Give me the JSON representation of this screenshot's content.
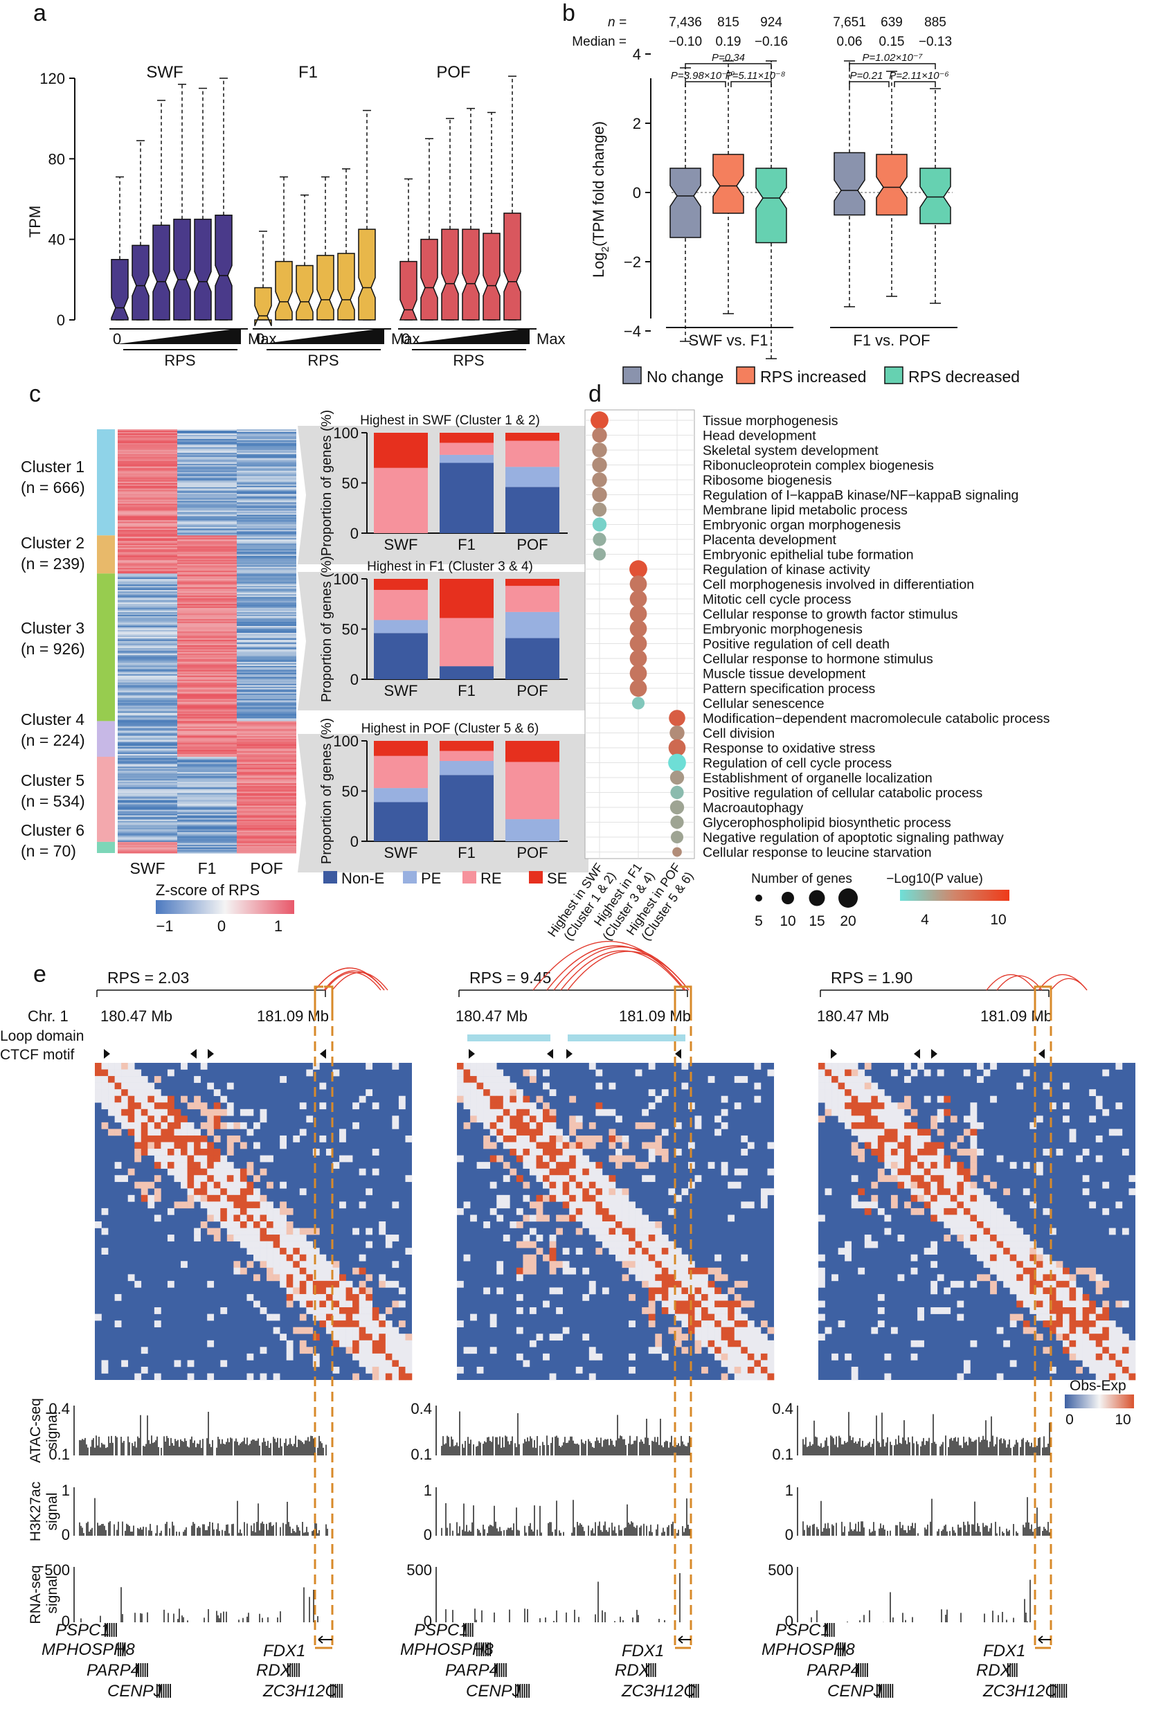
{
  "panel_a": {
    "letter": "a",
    "y_label": "TPM",
    "y_ticks": [
      "0",
      "40",
      "80",
      "120"
    ],
    "x_label": "RPS",
    "x_left": "0",
    "x_right": "Max",
    "colors": {
      "SWF": "#4a3a8a",
      "F1": "#e8b74a",
      "POF": "#d9575e"
    },
    "groups": [
      {
        "name": "SWF",
        "boxes": [
          [
            0,
            0,
            6,
            30,
            71
          ],
          [
            0,
            0,
            17,
            37,
            89
          ],
          [
            0,
            0,
            19,
            47,
            109
          ],
          [
            0,
            0,
            20,
            50,
            117
          ],
          [
            0,
            0,
            19,
            50,
            115
          ],
          [
            0,
            0,
            22,
            52,
            120
          ]
        ]
      },
      {
        "name": "F1",
        "boxes": [
          [
            0,
            0,
            2,
            16,
            44
          ],
          [
            0,
            0,
            9,
            29,
            71
          ],
          [
            0,
            0,
            9,
            27,
            62
          ],
          [
            0,
            0,
            10,
            32,
            71
          ],
          [
            0,
            0,
            10,
            33,
            75
          ],
          [
            0,
            0,
            16,
            45,
            104
          ]
        ]
      },
      {
        "name": "POF",
        "boxes": [
          [
            0,
            0,
            5,
            29,
            70
          ],
          [
            0,
            0,
            16,
            40,
            90
          ],
          [
            0,
            0,
            18,
            45,
            100
          ],
          [
            0,
            0,
            18,
            45,
            105
          ],
          [
            0,
            0,
            17,
            43,
            103
          ],
          [
            0,
            0,
            19,
            53,
            121
          ]
        ]
      }
    ]
  },
  "panel_b": {
    "letter": "b",
    "n_label": "n =",
    "median_label": "Median =",
    "y_label_pre": "Log",
    "y_label_sub": "2",
    "y_label_post": "(TPM fold change)",
    "y_ticks": [
      "-4",
      "-2",
      "0",
      "2",
      "4"
    ],
    "groups": [
      {
        "name": "SWF vs. F1",
        "n": [
          "7,436",
          "815",
          "924"
        ],
        "median": [
          "−0.10",
          "0.19",
          "−0.16"
        ],
        "boxes": [
          [
            -4.3,
            -1.3,
            -0.1,
            0.7,
            3.6
          ],
          [
            -3.5,
            -0.6,
            0.19,
            1.1,
            3.8
          ],
          [
            -4.8,
            -1.45,
            -0.16,
            0.7,
            3.8
          ]
        ],
        "pvals": [
          "P=0.34",
          "P=3.98×10⁻¹⁰",
          "P=5.11×10⁻⁸"
        ]
      },
      {
        "name": "F1 vs. POF",
        "n": [
          "7,651",
          "639",
          "885"
        ],
        "median": [
          "0.06",
          "0.15",
          "−0.13"
        ],
        "boxes": [
          [
            -3.3,
            -0.65,
            0.06,
            1.15,
            3.8
          ],
          [
            -3.0,
            -0.65,
            0.15,
            1.1,
            3.5
          ],
          [
            -3.2,
            -0.9,
            -0.13,
            0.7,
            3.0
          ]
        ],
        "pvals": [
          "P=1.02×10⁻⁷",
          "P=0.21",
          "P=2.11×10⁻⁶"
        ]
      }
    ],
    "legend": [
      {
        "label": "No change",
        "color": "#8a93ad"
      },
      {
        "label": "RPS increased",
        "color": "#f47f5d"
      },
      {
        "label": "RPS decreased",
        "color": "#66d1b1"
      }
    ]
  },
  "panel_c": {
    "letter": "c",
    "clusters": [
      {
        "name": "Cluster 1",
        "n": "(n = 666)",
        "color": "#8fd3e8"
      },
      {
        "name": "Cluster 2",
        "n": "(n = 239)",
        "color": "#e8b96a"
      },
      {
        "name": "Cluster 3",
        "n": "(n = 926)",
        "color": "#97cc4f"
      },
      {
        "name": "Cluster 4",
        "n": "(n = 224)",
        "color": "#c7b8e6"
      },
      {
        "name": "Cluster 5",
        "n": "(n = 534)",
        "color": "#f3a8ad"
      },
      {
        "name": "Cluster 6",
        "n": "(n = 70)",
        "color": "#7dd6b8"
      }
    ],
    "columns": [
      "SWF",
      "F1",
      "POF"
    ],
    "scale_title": "Z-score of RPS",
    "scale_ticks": [
      "−1",
      "0",
      "1"
    ],
    "bar_title_y": "Proportion of genes (%)",
    "bar_y_ticks": [
      "0",
      "50",
      "100"
    ],
    "bar_panels": [
      {
        "title": "Highest in SWF  (Cluster 1 & 2)",
        "bars": [
          [
            0,
            0,
            65,
            35
          ],
          [
            70,
            8,
            12,
            10
          ],
          [
            46,
            20,
            26,
            8
          ]
        ]
      },
      {
        "title": "Highest in F1 (Cluster 3 & 4)",
        "bars": [
          [
            46,
            13,
            30,
            11
          ],
          [
            13,
            0,
            48,
            39
          ],
          [
            41,
            26,
            26,
            7
          ]
        ]
      },
      {
        "title": "Highest in POF (Cluster 5 & 6)",
        "bars": [
          [
            39,
            14,
            32,
            15
          ],
          [
            66,
            14,
            10,
            10
          ],
          [
            0,
            22,
            57,
            21
          ]
        ]
      }
    ],
    "categories": [
      {
        "label": "Non-E",
        "color": "#3c5aa0"
      },
      {
        "label": "PE",
        "color": "#98b0e0"
      },
      {
        "label": "RE",
        "color": "#f6929c"
      },
      {
        "label": "SE",
        "color": "#e6301e"
      }
    ]
  },
  "panel_d": {
    "letter": "d",
    "terms": [
      "Tissue morphogenesis",
      "Head development",
      "Skeletal system development",
      "Ribonucleoprotein complex biogenesis",
      "Ribosome biogenesis",
      "Regulation of I−kappaB kinase/NF−kappaB signaling",
      "Membrane lipid metabolic process",
      "Embryonic organ morphogenesis",
      "Placenta development",
      "Embryonic epithelial tube formation",
      "Regulation of kinase activity",
      "Cell morphogenesis involved in differentiation",
      "Mitotic cell cycle process",
      "Cellular response to growth factor stimulus",
      "Embryonic morphogenesis",
      "Positive regulation of cell death",
      "Cellular response to hormone stimulus",
      "Muscle tissue development",
      "Pattern specification process",
      "Cellular senescence",
      "Modification−dependent macromolecule catabolic process",
      "Cell division",
      "Response to oxidative stress",
      "Regulation of cell cycle process",
      "Establishment of organelle localization",
      "Positive regulation of cellular catabolic process",
      "Macroautophagy",
      "Glycerophospholipid biosynthetic process",
      "Negative regulation of apoptotic signaling pathway",
      "Cellular response to leucine starvation"
    ],
    "columns": [
      "Highest in SWF (Cluster 1 & 2)",
      "Highest in F1 (Cluster 3 & 4)",
      "Highest in POF (Cluster 5 & 6)"
    ],
    "dots": [
      [
        0,
        0,
        9.5,
        18
      ],
      [
        0,
        1,
        7.5,
        14
      ],
      [
        0,
        2,
        7,
        14
      ],
      [
        0,
        3,
        7,
        14
      ],
      [
        0,
        4,
        7,
        14
      ],
      [
        0,
        5,
        7,
        14
      ],
      [
        0,
        6,
        6.5,
        13
      ],
      [
        0,
        7,
        4,
        13
      ],
      [
        0,
        8,
        5.5,
        12
      ],
      [
        0,
        9,
        5.5,
        11
      ],
      [
        1,
        10,
        9.5,
        18
      ],
      [
        1,
        11,
        8,
        17
      ],
      [
        1,
        12,
        8,
        17
      ],
      [
        1,
        13,
        8,
        17
      ],
      [
        1,
        14,
        8,
        17
      ],
      [
        1,
        15,
        8,
        17
      ],
      [
        1,
        16,
        8,
        17
      ],
      [
        1,
        17,
        8,
        17
      ],
      [
        1,
        18,
        8,
        17
      ],
      [
        1,
        19,
        4.5,
        11
      ],
      [
        2,
        20,
        9,
        16
      ],
      [
        2,
        21,
        7,
        14
      ],
      [
        2,
        22,
        8.5,
        17
      ],
      [
        2,
        23,
        3.5,
        18
      ],
      [
        2,
        24,
        6.5,
        13
      ],
      [
        2,
        25,
        5,
        12
      ],
      [
        2,
        26,
        6,
        13
      ],
      [
        2,
        27,
        6,
        12
      ],
      [
        2,
        28,
        6,
        11
      ],
      [
        2,
        29,
        7,
        7
      ]
    ],
    "size_title": "Number of genes",
    "size_ticks": [
      "5",
      "10",
      "15",
      "20"
    ],
    "color_title": "−Log10(P value)",
    "color_ticks": [
      "4",
      "10"
    ]
  },
  "panel_e": {
    "letter": "e",
    "chrom": "Chr. 1",
    "start": "180.47 Mb",
    "end": "181.09 Mb",
    "row_loop": "Loop domain",
    "row_ctcf": "CTCF motif",
    "scale_title": "Obs-Exp",
    "scale_ticks": [
      "0",
      "10"
    ],
    "track_atac": "ATAC-seq signal",
    "track_h3": "H3K27ac signal",
    "track_rna": "RNA-seq signal",
    "atac_ticks": [
      "0.1",
      "0.4"
    ],
    "h3_ticks": [
      "0",
      "1"
    ],
    "rna_ticks": [
      "0",
      "500"
    ],
    "columns": [
      {
        "rps": "RPS = 2.03"
      },
      {
        "rps": "RPS = 9.45"
      },
      {
        "rps": "RPS = 1.90"
      }
    ],
    "genes": [
      "PSPC1",
      "MPHOSPH8",
      "PARP4",
      "CENPJ",
      "FDX1",
      "RDX",
      "ZC3H12C"
    ],
    "highlight_gene_color": "#e02020"
  }
}
